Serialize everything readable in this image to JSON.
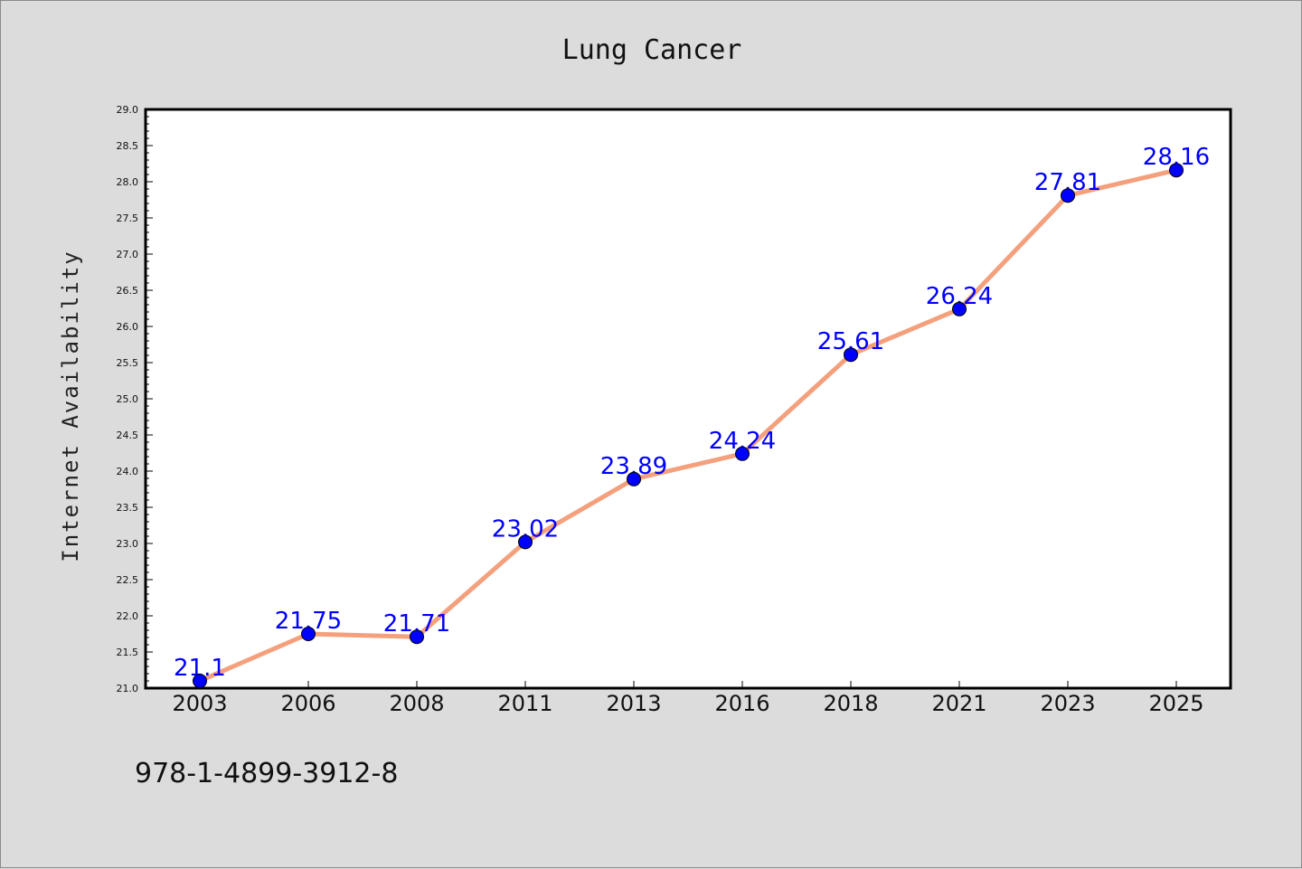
{
  "chart_data": {
    "type": "line",
    "title": "Lung Cancer",
    "xlabel": "",
    "ylabel": "Internet Availability",
    "categories": [
      "2003",
      "2006",
      "2008",
      "2011",
      "2013",
      "2016",
      "2018",
      "2021",
      "2023",
      "2025"
    ],
    "series": [
      {
        "values": [
          21.1,
          21.75,
          21.71,
          23.02,
          23.89,
          24.24,
          25.61,
          26.24,
          27.81,
          28.16
        ],
        "labels": [
          "21.1",
          "21.75",
          "21.71",
          "23.02",
          "23.89",
          "24.24",
          "25.61",
          "26.24",
          "27.81",
          "28.16"
        ]
      }
    ],
    "ylim": [
      21.0,
      29.0
    ],
    "ytick_step": 0.5,
    "grid": false,
    "legend": "none",
    "colors": {
      "line": "#f4a07c",
      "marker": "#0000ff",
      "label": "#0000ff",
      "frame": "#000000",
      "background": "#dcdcdc",
      "plot_background": "#ffffff"
    }
  },
  "footer": {
    "text": "978-1-4899-3912-8"
  }
}
